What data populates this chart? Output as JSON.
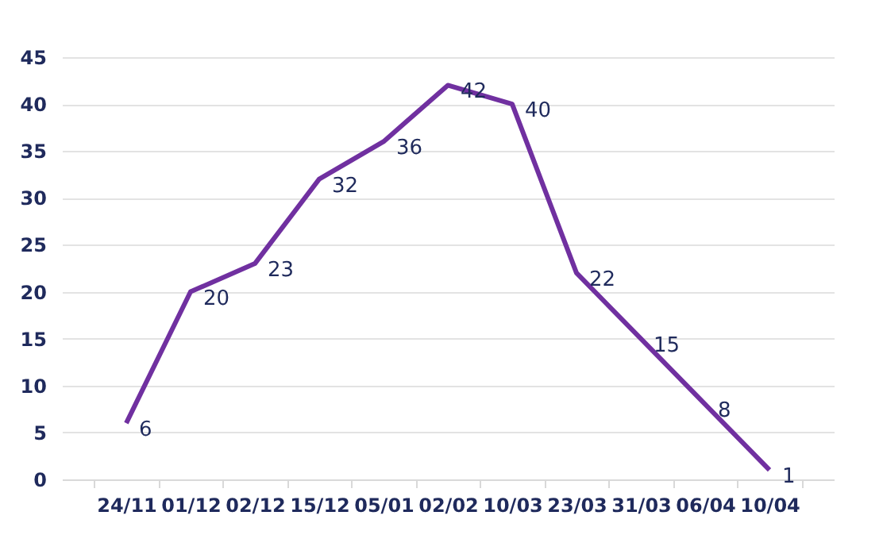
{
  "chart_data": {
    "type": "line",
    "categories": [
      "24/11",
      "01/12",
      "02/12",
      "15/12",
      "05/01",
      "02/02",
      "10/03",
      "23/03",
      "31/03",
      "06/04",
      "10/04"
    ],
    "series": [
      {
        "color": "#7030a0",
        "values": [
          6,
          20,
          23,
          32,
          36,
          42,
          40,
          22,
          15,
          8,
          1
        ]
      }
    ],
    "ylim": [
      0,
      45
    ],
    "yticks": [
      0,
      5,
      10,
      15,
      20,
      25,
      30,
      35,
      40,
      45
    ],
    "grid": "y",
    "data_labels": true,
    "marker": "none",
    "line_style": "solid",
    "legend": false
  }
}
